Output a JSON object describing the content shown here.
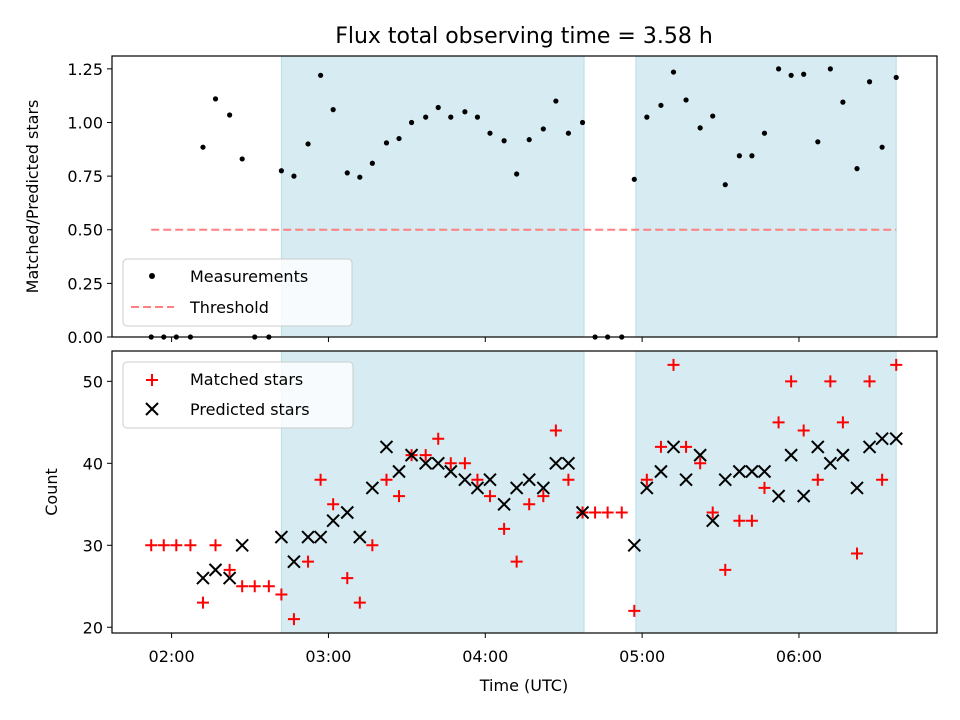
{
  "chart_data": {
    "type": "scatter",
    "title": "Flux total observing time = 3.58 h",
    "xlabel": "Time (UTC)",
    "x_unit": "hours UTC",
    "xlim": [
      1.62,
      6.88
    ],
    "xticks": [
      {
        "value": 2,
        "label": "02:00"
      },
      {
        "value": 3,
        "label": "03:00"
      },
      {
        "value": 4,
        "label": "04:00"
      },
      {
        "value": 5,
        "label": "05:00"
      },
      {
        "value": 6,
        "label": "06:00"
      }
    ],
    "shaded_intervals": [
      {
        "start": 2.7,
        "end": 4.63
      },
      {
        "start": 4.96,
        "end": 6.62
      }
    ],
    "shade_color": "#add8e6",
    "panels": [
      {
        "ylabel": "Matched/Predicted stars",
        "ylim": [
          0,
          1.31
        ],
        "yticks": [
          {
            "value": 0,
            "label": "0.00"
          },
          {
            "value": 0.25,
            "label": "0.25"
          },
          {
            "value": 0.5,
            "label": "0.50"
          },
          {
            "value": 0.75,
            "label": "0.75"
          },
          {
            "value": 1.0,
            "label": "1.00"
          },
          {
            "value": 1.25,
            "label": "1.25"
          }
        ],
        "legend_position": "lower-left",
        "series": [
          {
            "name": "Measurements",
            "marker": "dot",
            "color": "#000000",
            "x": [
              1.87,
              1.95,
              2.03,
              2.12,
              2.2,
              2.28,
              2.37,
              2.45,
              2.53,
              2.62,
              2.7,
              2.78,
              2.87,
              2.95,
              3.03,
              3.12,
              3.2,
              3.28,
              3.37,
              3.45,
              3.53,
              3.62,
              3.7,
              3.78,
              3.87,
              3.95,
              4.03,
              4.12,
              4.2,
              4.28,
              4.37,
              4.45,
              4.53,
              4.62,
              4.7,
              4.78,
              4.87,
              4.95,
              5.03,
              5.12,
              5.2,
              5.28,
              5.37,
              5.45,
              5.53,
              5.62,
              5.7,
              5.78,
              5.87,
              5.95,
              6.03,
              6.12,
              6.2,
              6.28,
              6.37,
              6.45,
              6.53,
              6.62
            ],
            "y": [
              0,
              0,
              0,
              0,
              0.885,
              1.11,
              1.035,
              0.83,
              0,
              0,
              0.775,
              0.75,
              0.9,
              1.22,
              1.06,
              0.765,
              0.745,
              0.81,
              0.905,
              0.925,
              1.0,
              1.025,
              1.07,
              1.025,
              1.05,
              1.025,
              0.95,
              0.915,
              0.76,
              0.92,
              0.97,
              1.1,
              0.95,
              1.0,
              0,
              0,
              0,
              0.735,
              1.025,
              1.08,
              1.235,
              1.105,
              0.975,
              1.03,
              0.71,
              0.845,
              0.845,
              0.95,
              1.25,
              1.22,
              1.225,
              0.91,
              1.25,
              1.095,
              0.785,
              1.19,
              0.885,
              1.21
            ]
          },
          {
            "name": "Threshold",
            "marker": "dashed-line",
            "color": "#ff8080",
            "x": [
              1.87,
              6.62
            ],
            "y": [
              0.5,
              0.5
            ]
          }
        ]
      },
      {
        "ylabel": "Count",
        "ylim": [
          19.3,
          53.7
        ],
        "yticks": [
          {
            "value": 20,
            "label": "20"
          },
          {
            "value": 30,
            "label": "30"
          },
          {
            "value": 40,
            "label": "40"
          },
          {
            "value": 50,
            "label": "50"
          }
        ],
        "legend_position": "upper-left",
        "series": [
          {
            "name": "Matched stars",
            "marker": "plus",
            "color": "#ff0000",
            "x": [
              1.87,
              1.95,
              2.03,
              2.12,
              2.2,
              2.28,
              2.37,
              2.45,
              2.53,
              2.62,
              2.7,
              2.78,
              2.87,
              2.95,
              3.03,
              3.12,
              3.2,
              3.28,
              3.37,
              3.45,
              3.53,
              3.62,
              3.7,
              3.78,
              3.87,
              3.95,
              4.03,
              4.12,
              4.2,
              4.28,
              4.37,
              4.45,
              4.53,
              4.62,
              4.7,
              4.78,
              4.87,
              4.95,
              5.03,
              5.12,
              5.2,
              5.28,
              5.37,
              5.45,
              5.53,
              5.62,
              5.7,
              5.78,
              5.87,
              5.95,
              6.03,
              6.12,
              6.2,
              6.28,
              6.37,
              6.45,
              6.53,
              6.62
            ],
            "y": [
              30,
              30,
              30,
              30,
              23,
              30,
              27,
              25,
              25,
              25,
              24,
              21,
              28,
              38,
              35,
              26,
              23,
              30,
              38,
              36,
              41,
              41,
              43,
              40,
              40,
              38,
              36,
              32,
              28,
              35,
              36,
              44,
              38,
              34,
              34,
              34,
              34,
              22,
              38,
              42,
              52,
              42,
              40,
              34,
              27,
              33,
              33,
              37,
              45,
              50,
              44,
              38,
              50,
              45,
              29,
              50,
              38,
              52
            ]
          },
          {
            "name": "Predicted stars",
            "marker": "x",
            "color": "#000000",
            "x": [
              2.2,
              2.28,
              2.37,
              2.45,
              2.7,
              2.78,
              2.87,
              2.95,
              3.03,
              3.12,
              3.2,
              3.28,
              3.37,
              3.45,
              3.53,
              3.62,
              3.7,
              3.78,
              3.87,
              3.95,
              4.03,
              4.12,
              4.2,
              4.28,
              4.37,
              4.45,
              4.53,
              4.62,
              4.95,
              5.03,
              5.12,
              5.2,
              5.28,
              5.37,
              5.45,
              5.53,
              5.62,
              5.7,
              5.78,
              5.87,
              5.95,
              6.03,
              6.12,
              6.2,
              6.28,
              6.37,
              6.45,
              6.53,
              6.62
            ],
            "y": [
              26,
              27,
              26,
              30,
              31,
              28,
              31,
              31,
              33,
              34,
              31,
              37,
              42,
              39,
              41,
              40,
              40,
              39,
              38,
              37,
              38,
              35,
              37,
              38,
              37,
              40,
              40,
              34,
              30,
              37,
              39,
              42,
              38,
              41,
              33,
              38,
              39,
              39,
              39,
              36,
              41,
              36,
              42,
              40,
              41,
              37,
              42,
              43,
              43
            ]
          }
        ]
      }
    ]
  }
}
